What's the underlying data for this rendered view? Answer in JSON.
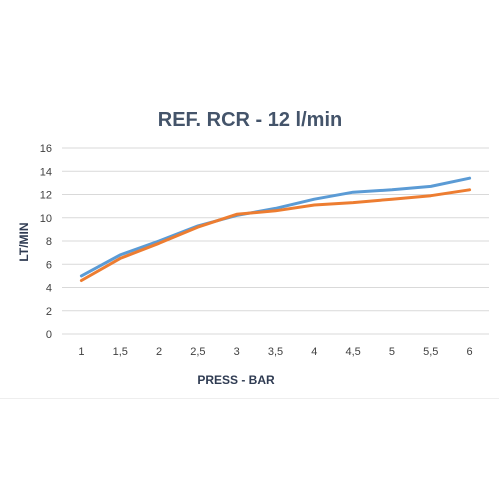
{
  "chart_data": {
    "type": "line",
    "title": "REF. RCR  -  12 l/min",
    "xlabel": "PRESS - BAR",
    "ylabel": "LT/MIN",
    "categories": [
      "1",
      "1,5",
      "2",
      "2,5",
      "3",
      "3,5",
      "4",
      "4,5",
      "5",
      "5,5",
      "6"
    ],
    "yticks": [
      "0",
      "2",
      "4",
      "6",
      "8",
      "10",
      "12",
      "14",
      "16"
    ],
    "ylim": [
      0,
      16
    ],
    "grid": true,
    "legend": "none",
    "series": [
      {
        "color": "#5b9bd5",
        "values": [
          5.0,
          6.8,
          8.0,
          9.3,
          10.2,
          10.8,
          11.6,
          12.2,
          12.4,
          12.7,
          13.4
        ]
      },
      {
        "color": "#ed7d31",
        "values": [
          4.6,
          6.5,
          7.8,
          9.2,
          10.3,
          10.6,
          11.1,
          11.3,
          11.6,
          11.9,
          12.4
        ]
      }
    ]
  }
}
